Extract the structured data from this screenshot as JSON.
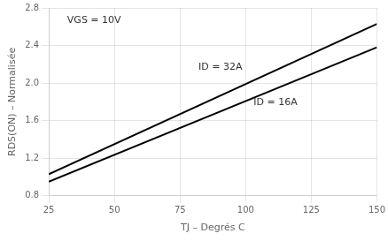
{
  "chart_data": {
    "type": "line",
    "x_label": "TJ – Degrés C",
    "y_label": "RDS(ON) – Normalisée",
    "x": [
      25,
      150
    ],
    "series": [
      {
        "color": "#000000",
        "values": [
          1.03,
          2.63
        ]
      },
      {
        "color": "#000000",
        "values": [
          0.95,
          2.38
        ]
      }
    ],
    "xlim": [
      25,
      150
    ],
    "ylim": [
      0.8,
      2.8
    ],
    "xticks": [
      25,
      50,
      75,
      100,
      125,
      150
    ],
    "yticks": [
      0.8,
      1.2,
      1.6,
      {
        "value": 2.0,
        "label": "2.0"
      },
      2.4,
      2.8
    ],
    "grid": true,
    "annotations": [
      {
        "text": "VGS = 10V",
        "x": 32,
        "y": 2.72
      },
      {
        "text": "ID = 32A",
        "x": 82,
        "y": 2.12
      },
      {
        "text": "ID = 16A",
        "x": 103,
        "y": 1.74
      }
    ]
  }
}
